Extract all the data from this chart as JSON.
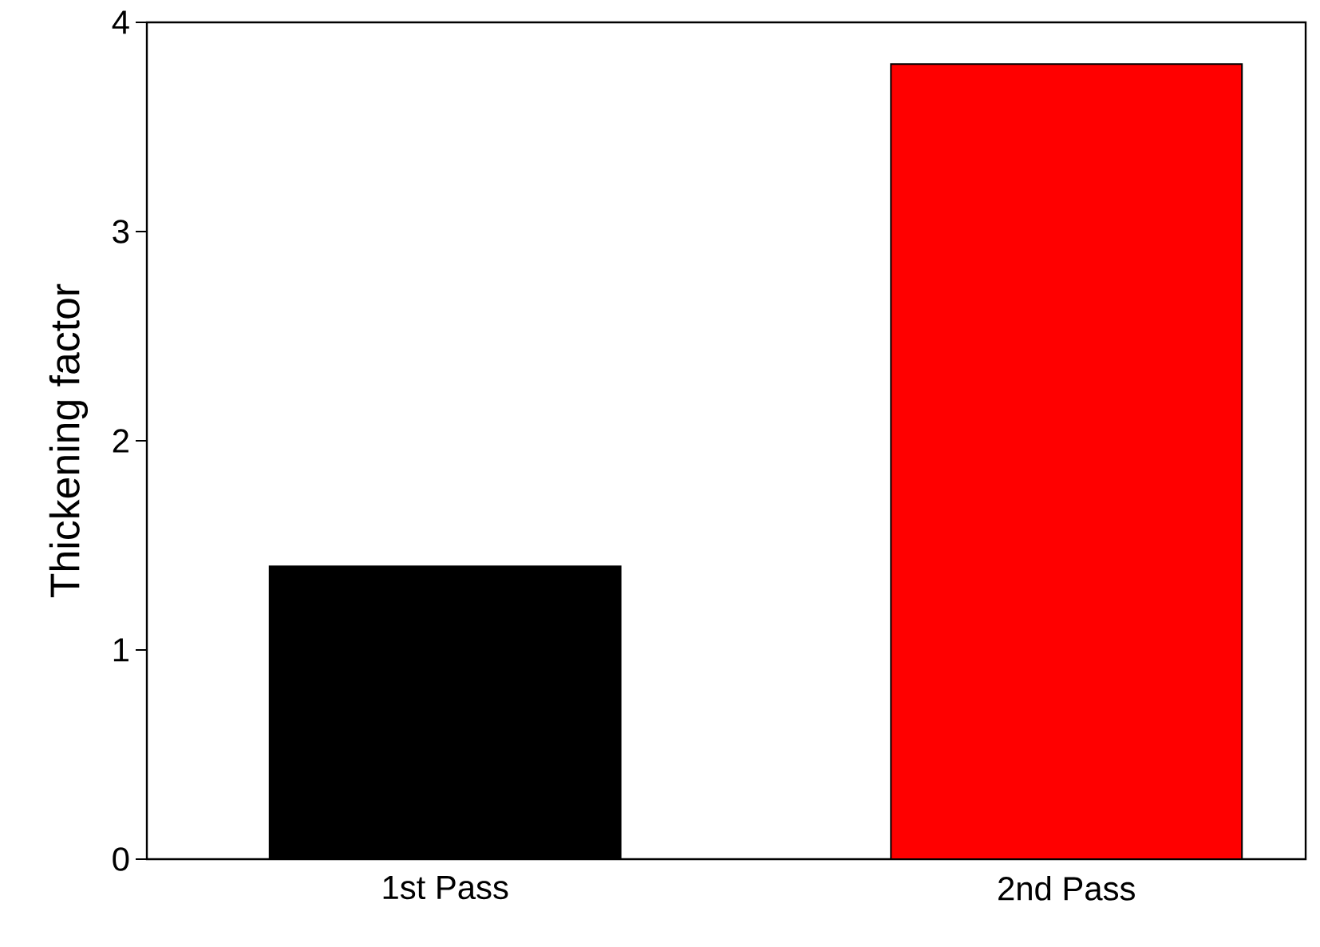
{
  "chart_data": {
    "type": "bar",
    "ylabel": "Thickening factor",
    "categories": [
      "1st Pass",
      "2nd Pass"
    ],
    "values": [
      1.4,
      3.8
    ],
    "colors": [
      "#000000",
      "#ff0000"
    ],
    "ylim": [
      0,
      4
    ],
    "yticks": [
      0,
      1,
      2,
      3,
      4
    ],
    "grid": false
  }
}
